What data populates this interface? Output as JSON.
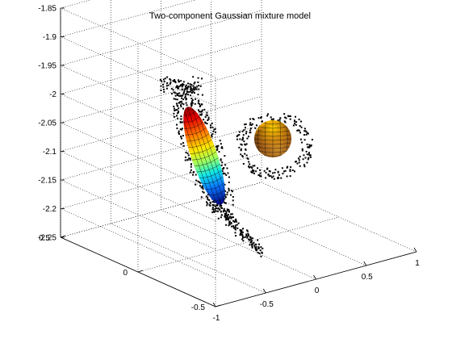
{
  "chart_data": {
    "type": "scatter3d",
    "title": "Two-component Gaussian mixture model",
    "xlabel": "",
    "ylabel": "",
    "zlabel": "",
    "grid": true,
    "xlim": [
      -1,
      1
    ],
    "ylim": [
      -0.5,
      0.5
    ],
    "zlim": [
      -2.25,
      -1.85
    ],
    "x_ticks": [
      "-1",
      "-0.5",
      "0",
      "0.5",
      "1"
    ],
    "y_ticks": [
      "-0.5",
      "0",
      "0.5"
    ],
    "z_ticks": [
      "-1.85",
      "-1.9",
      "-1.95",
      "-2",
      "-2.05",
      "-2.1",
      "-2.15",
      "-2.2",
      "-2.25"
    ],
    "components": [
      {
        "label": "elongated ellipsoid",
        "colormap": "jet"
      },
      {
        "label": "sphere",
        "colormap": "hot"
      }
    ]
  }
}
